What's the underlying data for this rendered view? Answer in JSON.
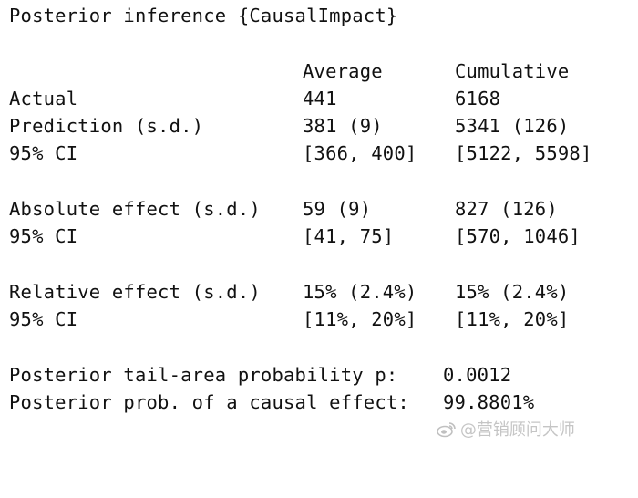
{
  "title": "Posterior inference {CausalImpact}",
  "headers": {
    "average": "Average",
    "cumulative": "Cumulative"
  },
  "rows": {
    "actual": {
      "label": "Actual",
      "average": "441",
      "cumulative": "6168"
    },
    "prediction": {
      "label": "Prediction (s.d.)",
      "average": "381 (9)",
      "cumulative": "5341 (126)"
    },
    "prediction_ci": {
      "label": "95% CI",
      "average": "[366, 400]",
      "cumulative": "[5122, 5598]"
    },
    "absolute": {
      "label": "Absolute effect (s.d.)",
      "average": "59 (9)",
      "cumulative": "827 (126)"
    },
    "absolute_ci": {
      "label": "95% CI",
      "average": "[41, 75]",
      "cumulative": "[570, 1046]"
    },
    "relative": {
      "label": "Relative effect (s.d.)",
      "average": "15% (2.4%)",
      "cumulative": "15% (2.4%)"
    },
    "relative_ci": {
      "label": "95% CI",
      "average": "[11%, 20%]",
      "cumulative": "[11%, 20%]"
    }
  },
  "tail_probability": {
    "label": "Posterior tail-area probability p:",
    "value": "0.0012"
  },
  "causal_prob": {
    "label": "Posterior prob. of a causal effect:",
    "value": "99.8801%"
  },
  "watermark": {
    "text": "@营销顾问大师",
    "icon": "weibo-icon"
  }
}
